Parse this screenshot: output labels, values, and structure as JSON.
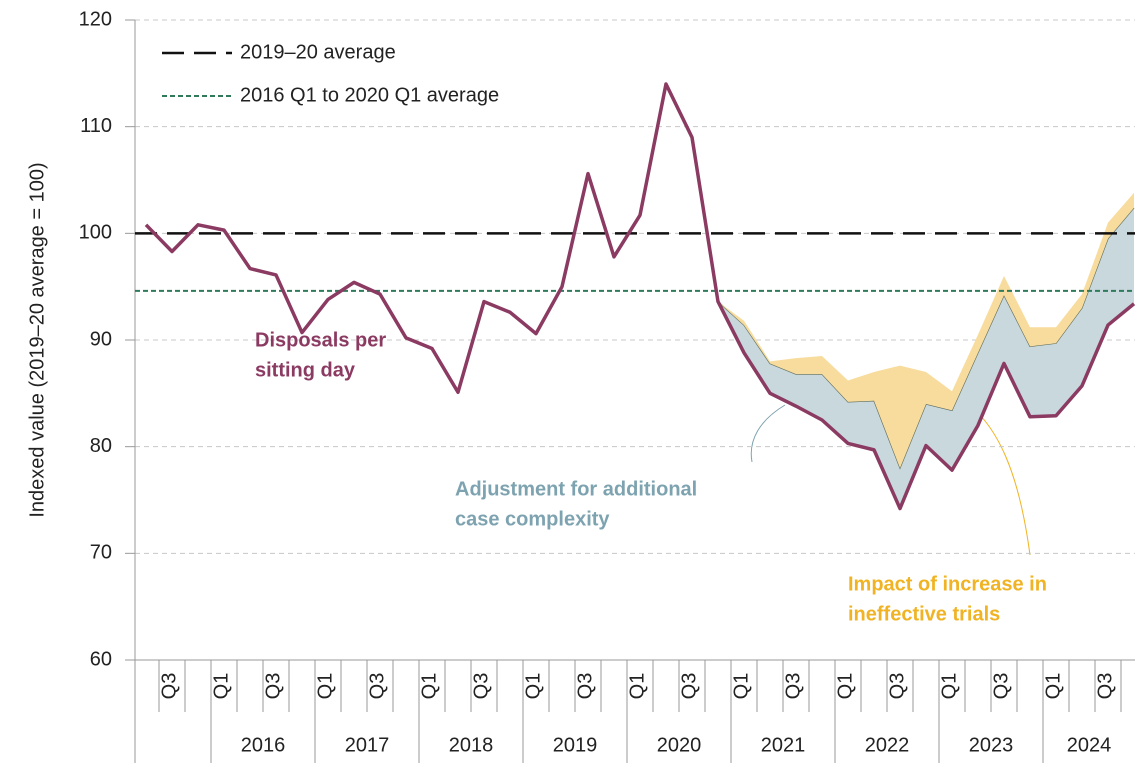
{
  "chart_data": {
    "type": "line",
    "y_label": "Indexed value (2019–20 average = 100)",
    "categories": [
      null,
      "Q3",
      null,
      "Q1",
      null,
      "Q3",
      null,
      "Q1",
      null,
      "Q3",
      null,
      "Q1",
      null,
      "Q3",
      null,
      "Q1",
      null,
      "Q3",
      null,
      "Q1",
      null,
      "Q3",
      null,
      "Q1",
      null,
      "Q3",
      null,
      "Q1",
      null,
      "Q3",
      null,
      "Q1",
      null,
      "Q3",
      null,
      "Q1",
      null,
      "Q3",
      null
    ],
    "years": [
      "2016",
      "2017",
      "2018",
      "2019",
      "2020",
      "2021",
      "2022",
      "2023",
      "2024"
    ],
    "series": [
      {
        "name": "Disposals per sitting day",
        "color": "#8b3a62",
        "role": "line",
        "values": [
          100.8,
          98.3,
          100.8,
          100.3,
          96.7,
          96.1,
          90.7,
          93.8,
          95.4,
          94.3,
          90.2,
          89.2,
          85.1,
          93.6,
          92.6,
          90.6,
          95.0,
          105.6,
          97.8,
          101.7,
          114.0,
          109.0,
          93.6,
          88.8,
          85.0,
          83.8,
          82.5,
          80.3,
          79.7,
          74.2,
          80.1,
          77.8,
          82.0,
          87.8,
          82.8,
          82.9,
          85.7,
          91.4,
          93.4
        ]
      },
      {
        "name": "Adjustment for additional case complexity",
        "color": "#c8d8dc",
        "edge_color": "#5d6b5a",
        "role": "stack",
        "values": [
          null,
          null,
          null,
          null,
          null,
          null,
          null,
          null,
          null,
          null,
          null,
          null,
          null,
          null,
          null,
          null,
          null,
          null,
          null,
          null,
          null,
          null,
          0,
          2.6,
          2.8,
          3.0,
          4.3,
          3.9,
          4.6,
          3.8,
          3.9,
          5.6,
          6.8,
          6.4,
          6.6,
          6.8,
          7.3,
          8.1,
          9.0
        ]
      },
      {
        "name": "Impact of increase in ineffective trials",
        "color": "#f8dc9e",
        "role": "stack",
        "values": [
          null,
          null,
          null,
          null,
          null,
          null,
          null,
          null,
          null,
          null,
          null,
          null,
          null,
          null,
          null,
          null,
          null,
          null,
          null,
          null,
          null,
          null,
          0,
          0.4,
          0.2,
          1.5,
          1.7,
          2.0,
          2.7,
          9.6,
          3.0,
          1.8,
          1.7,
          1.8,
          1.8,
          1.5,
          1.3,
          1.5,
          1.4
        ]
      }
    ],
    "reference_lines": [
      {
        "name": "2019–20 average",
        "value": 100,
        "color": "#111111",
        "dash": "long"
      },
      {
        "name": "2016 Q1 to 2020 Q1 average",
        "value": 94.6,
        "color": "#2e7a5a",
        "dash": "short"
      }
    ],
    "annotations": [
      {
        "lines": [
          "Disposals per",
          "sitting day"
        ],
        "color": "#8b3a62"
      },
      {
        "lines": [
          "Adjustment for additional",
          "case complexity"
        ],
        "color": "#7ea3b0"
      },
      {
        "lines": [
          "Impact of increase in",
          "ineffective trials"
        ],
        "color": "#f0b323"
      }
    ],
    "ylim": [
      60,
      120
    ],
    "yticks": [
      60,
      70,
      80,
      90,
      100,
      110,
      120
    ],
    "grid": true,
    "legend": "top-left"
  }
}
